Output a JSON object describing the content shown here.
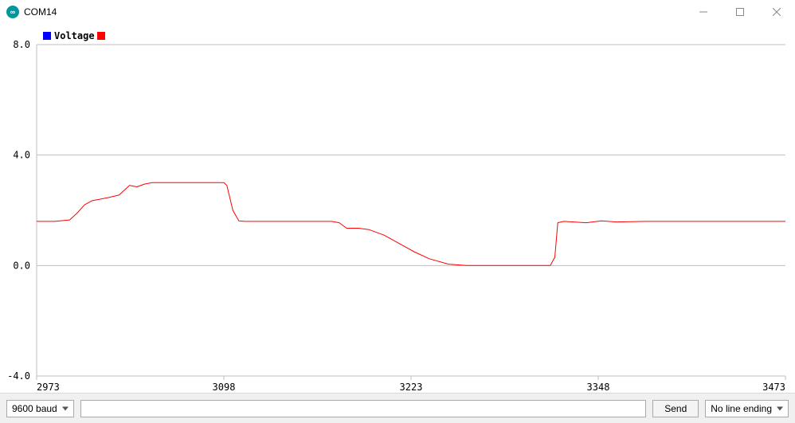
{
  "window": {
    "title": "COM14",
    "icon_color": "#00979d",
    "icon_symbol": "∞"
  },
  "legend": {
    "series1_label": "Voltage",
    "series1_color": "#0000ff",
    "series2_color": "#ff0000"
  },
  "plot": {
    "type": "line",
    "background_color": "#ffffff",
    "axis_color": "#bfbfbf",
    "grid_color": "#bfbfbf",
    "tick_font": "monospace",
    "tick_fontsize": 12,
    "tick_color": "#000000",
    "xlim": [
      2973,
      3473
    ],
    "ylim": [
      -4.0,
      8.0
    ],
    "yticks": [
      -4.0,
      0.0,
      4.0,
      8.0
    ],
    "ytick_labels": [
      "-4.0",
      "0.0",
      "4.0",
      "8.0"
    ],
    "xticks": [
      2973,
      3098,
      3223,
      3348,
      3473
    ],
    "xtick_labels": [
      "2973",
      "3098",
      "3223",
      "3348",
      "3473"
    ],
    "line_color": "#ff0000",
    "line_width": 1,
    "data": [
      [
        2973,
        1.6
      ],
      [
        2985,
        1.6
      ],
      [
        2995,
        1.65
      ],
      [
        3000,
        1.9
      ],
      [
        3005,
        2.2
      ],
      [
        3010,
        2.35
      ],
      [
        3020,
        2.45
      ],
      [
        3028,
        2.55
      ],
      [
        3035,
        2.9
      ],
      [
        3040,
        2.85
      ],
      [
        3045,
        2.95
      ],
      [
        3050,
        3.0
      ],
      [
        3055,
        3.0
      ],
      [
        3098,
        3.0
      ],
      [
        3100,
        2.9
      ],
      [
        3104,
        2.0
      ],
      [
        3108,
        1.62
      ],
      [
        3112,
        1.6
      ],
      [
        3170,
        1.6
      ],
      [
        3175,
        1.55
      ],
      [
        3180,
        1.35
      ],
      [
        3188,
        1.35
      ],
      [
        3195,
        1.3
      ],
      [
        3205,
        1.1
      ],
      [
        3215,
        0.8
      ],
      [
        3225,
        0.5
      ],
      [
        3235,
        0.25
      ],
      [
        3248,
        0.05
      ],
      [
        3260,
        0.0
      ],
      [
        3300,
        0.0
      ],
      [
        3316,
        0.0
      ],
      [
        3319,
        0.3
      ],
      [
        3321,
        1.55
      ],
      [
        3325,
        1.6
      ],
      [
        3340,
        1.55
      ],
      [
        3350,
        1.62
      ],
      [
        3360,
        1.58
      ],
      [
        3380,
        1.6
      ],
      [
        3473,
        1.6
      ]
    ]
  },
  "controls": {
    "baud_selected": "9600 baud",
    "send_label": "Send",
    "line_ending_selected": "No line ending",
    "input_value": ""
  }
}
